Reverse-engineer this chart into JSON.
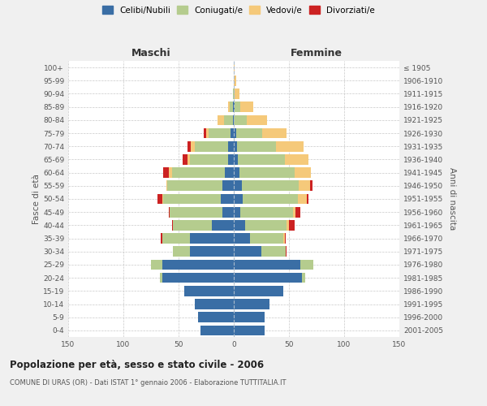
{
  "age_groups": [
    "0-4",
    "5-9",
    "10-14",
    "15-19",
    "20-24",
    "25-29",
    "30-34",
    "35-39",
    "40-44",
    "45-49",
    "50-54",
    "55-59",
    "60-64",
    "65-69",
    "70-74",
    "75-79",
    "80-84",
    "85-89",
    "90-94",
    "95-99",
    "100+"
  ],
  "birth_years": [
    "2001-2005",
    "1996-2000",
    "1991-1995",
    "1986-1990",
    "1981-1985",
    "1976-1980",
    "1971-1975",
    "1966-1970",
    "1961-1965",
    "1956-1960",
    "1951-1955",
    "1946-1950",
    "1941-1945",
    "1936-1940",
    "1931-1935",
    "1926-1930",
    "1921-1925",
    "1916-1920",
    "1911-1915",
    "1906-1910",
    "≤ 1905"
  ],
  "colors": {
    "celibi": "#3a6ea5",
    "coniugati": "#b5cc8e",
    "vedovi": "#f5c97a",
    "divorziati": "#cc2222"
  },
  "males": {
    "celibi": [
      30,
      32,
      35,
      45,
      65,
      65,
      40,
      40,
      20,
      10,
      12,
      10,
      8,
      5,
      5,
      3,
      1,
      1,
      0,
      0,
      0
    ],
    "coniugati": [
      0,
      0,
      0,
      0,
      2,
      10,
      15,
      25,
      35,
      48,
      52,
      50,
      48,
      35,
      30,
      20,
      8,
      3,
      1,
      0,
      0
    ],
    "vedovi": [
      0,
      0,
      0,
      0,
      0,
      0,
      0,
      0,
      0,
      0,
      1,
      1,
      3,
      2,
      4,
      2,
      6,
      1,
      0,
      0,
      0
    ],
    "divorziati": [
      0,
      0,
      0,
      0,
      0,
      0,
      0,
      1,
      1,
      1,
      4,
      0,
      5,
      4,
      3,
      2,
      0,
      0,
      0,
      0,
      0
    ]
  },
  "females": {
    "nubili": [
      28,
      28,
      32,
      45,
      62,
      60,
      25,
      15,
      10,
      6,
      8,
      7,
      5,
      4,
      3,
      2,
      0,
      1,
      0,
      0,
      0
    ],
    "coniugate": [
      0,
      0,
      0,
      0,
      3,
      12,
      22,
      30,
      38,
      48,
      50,
      52,
      50,
      42,
      35,
      24,
      12,
      5,
      1,
      0,
      0
    ],
    "vedove": [
      0,
      0,
      0,
      0,
      0,
      0,
      0,
      1,
      2,
      2,
      8,
      10,
      15,
      22,
      25,
      22,
      18,
      12,
      4,
      2,
      1
    ],
    "divorziate": [
      0,
      0,
      0,
      0,
      0,
      0,
      1,
      1,
      5,
      4,
      2,
      2,
      0,
      0,
      0,
      0,
      0,
      0,
      0,
      0,
      0
    ]
  },
  "title": "Popolazione per età, sesso e stato civile - 2006",
  "subtitle": "COMUNE DI URAS (OR) - Dati ISTAT 1° gennaio 2006 - Elaborazione TUTTITALIA.IT",
  "xlabel_left": "Maschi",
  "xlabel_right": "Femmine",
  "ylabel_left": "Fasce di età",
  "ylabel_right": "Anni di nascita",
  "legend_labels": [
    "Celibi/Nubili",
    "Coniugati/e",
    "Vedovi/e",
    "Divorziati/e"
  ],
  "xlim": 150,
  "background_color": "#f0f0f0",
  "bar_background": "#ffffff",
  "grid_color": "#bbbbbb"
}
